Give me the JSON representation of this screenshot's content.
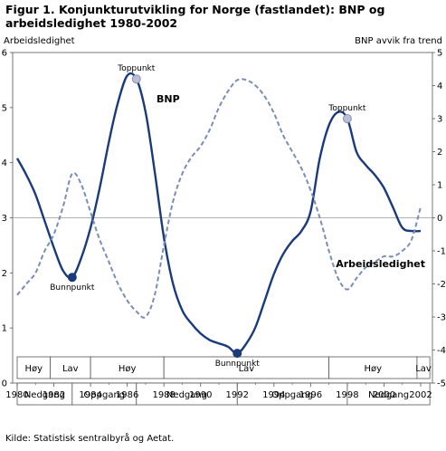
{
  "chart_data": {
    "type": "line",
    "title": "Figur 1. Konjunkturutvikling for Norge (fastlandet): BNP og arbeidsledighet 1980-2002",
    "left_axis_label": "Arbeidsledighet",
    "right_axis_label": "BNP avvik fra trend",
    "left_ylim": [
      0,
      6
    ],
    "left_ticks": [
      "0",
      "1",
      "2",
      "3",
      "4",
      "5",
      "6"
    ],
    "right_ylim": [
      -5,
      5
    ],
    "right_ticks": [
      "-5",
      "-4",
      "-3",
      "-2",
      "-1",
      "0",
      "1",
      "2",
      "3",
      "4",
      "5"
    ],
    "xlim": [
      1980,
      2002.5
    ],
    "x_ticks": [
      "1980",
      "1982",
      "1984",
      "1986",
      "1988",
      "1990",
      "1992",
      "1994",
      "1996",
      "1998",
      "2000",
      "2002"
    ],
    "grid": false,
    "series": [
      {
        "name": "BNP",
        "axis": "right",
        "color": "#1a3a7a",
        "style": "solid",
        "x": [
          1980.0,
          1980.5,
          1981.0,
          1981.5,
          1982.0,
          1982.5,
          1983.0,
          1983.5,
          1984.0,
          1984.5,
          1985.0,
          1985.5,
          1986.0,
          1986.5,
          1987.0,
          1987.5,
          1988.0,
          1988.5,
          1989.0,
          1989.5,
          1990.0,
          1990.5,
          1991.0,
          1991.5,
          1992.0,
          1992.5,
          1993.0,
          1993.5,
          1994.0,
          1994.5,
          1995.0,
          1995.5,
          1996.0,
          1996.5,
          1997.0,
          1997.5,
          1998.0,
          1998.5,
          1999.0,
          1999.5,
          2000.0,
          2000.5,
          2001.0,
          2001.5,
          2002.0
        ],
        "values": [
          1.8,
          1.3,
          0.7,
          -0.1,
          -0.9,
          -1.6,
          -1.8,
          -1.2,
          -0.3,
          0.9,
          2.3,
          3.5,
          4.3,
          4.2,
          3.2,
          1.4,
          -0.6,
          -2.0,
          -2.8,
          -3.2,
          -3.5,
          -3.7,
          -3.8,
          -3.9,
          -4.1,
          -3.8,
          -3.3,
          -2.5,
          -1.7,
          -1.1,
          -0.7,
          -0.4,
          0.2,
          1.8,
          2.8,
          3.2,
          3.0,
          2.0,
          1.6,
          1.3,
          0.9,
          0.3,
          -0.3,
          -0.4,
          -0.4
        ]
      },
      {
        "name": "Arbeidsledighet",
        "axis": "left",
        "color": "#7a8db8",
        "style": "dashed",
        "x": [
          1980.0,
          1980.5,
          1981.0,
          1981.5,
          1982.0,
          1982.5,
          1983.0,
          1983.5,
          1984.0,
          1984.5,
          1985.0,
          1985.5,
          1986.0,
          1986.5,
          1987.0,
          1987.5,
          1988.0,
          1988.5,
          1989.0,
          1989.5,
          1990.0,
          1990.5,
          1991.0,
          1991.5,
          1992.0,
          1992.5,
          1993.0,
          1993.5,
          1994.0,
          1994.5,
          1995.0,
          1995.5,
          1996.0,
          1996.5,
          1997.0,
          1997.5,
          1998.0,
          1998.5,
          1999.0,
          1999.5,
          2000.0,
          2000.5,
          2001.0,
          2001.5,
          2002.0
        ],
        "values": [
          1.6,
          1.8,
          2.0,
          2.4,
          2.7,
          3.2,
          3.8,
          3.6,
          3.1,
          2.6,
          2.2,
          1.8,
          1.5,
          1.3,
          1.2,
          1.6,
          2.5,
          3.3,
          3.8,
          4.1,
          4.3,
          4.6,
          5.0,
          5.3,
          5.5,
          5.5,
          5.4,
          5.2,
          4.9,
          4.5,
          4.2,
          3.9,
          3.5,
          3.0,
          2.4,
          1.9,
          1.7,
          1.9,
          2.1,
          2.2,
          2.3,
          2.3,
          2.4,
          2.6,
          3.2
        ]
      }
    ],
    "annotations": [
      {
        "label": "Toppunkt",
        "series": "BNP",
        "x": 1986.5,
        "y": 4.2
      },
      {
        "label": "Bunnpunkt",
        "series": "BNP",
        "x": 1983.0,
        "y": -1.8
      },
      {
        "label": "Bunnpunkt",
        "series": "BNP",
        "x": 1992.0,
        "y": -4.1
      },
      {
        "label": "Toppunkt",
        "series": "BNP",
        "x": 1998.0,
        "y": 3.0
      }
    ],
    "phases": {
      "top_row": [
        {
          "label": "Høy",
          "from": 1980.0,
          "to": 1981.8
        },
        {
          "label": "Lav",
          "from": 1981.8,
          "to": 1984.0
        },
        {
          "label": "Høy",
          "from": 1984.0,
          "to": 1988.0
        },
        {
          "label": "Lav",
          "from": 1988.0,
          "to": 1997.0
        },
        {
          "label": "Høy",
          "from": 1997.0,
          "to": 2001.8
        },
        {
          "label": "Lav",
          "from": 2001.8,
          "to": 2002.5
        }
      ],
      "bottom_row": [
        {
          "label": "Nedgang",
          "from": 1980.0,
          "to": 1983.0
        },
        {
          "label": "Oppgang",
          "from": 1983.0,
          "to": 1986.5
        },
        {
          "label": "Nedgang",
          "from": 1986.5,
          "to": 1992.0
        },
        {
          "label": "Oppgang",
          "from": 1992.0,
          "to": 1998.0
        },
        {
          "label": "Nedgang",
          "from": 1998.0,
          "to": 2002.5
        }
      ]
    }
  },
  "source": "Kilde: Statistisk sentralbyrå og Aetat."
}
